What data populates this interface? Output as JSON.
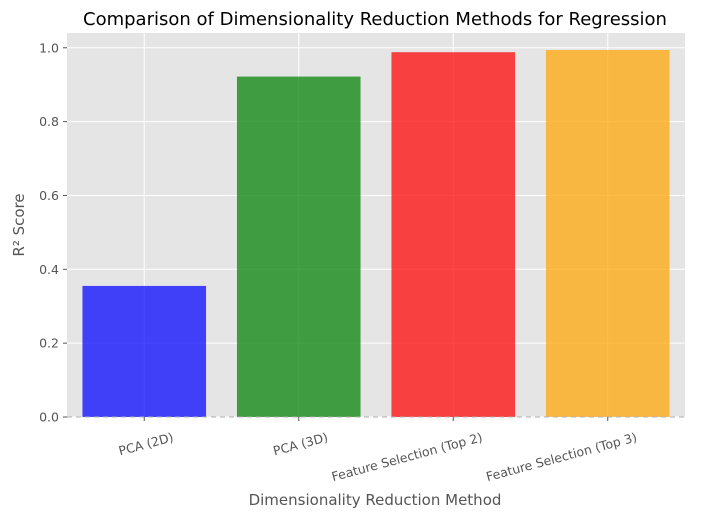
{
  "chart_data": {
    "type": "bar",
    "title": "Comparison of Dimensionality Reduction Methods for Regression",
    "xlabel": "Dimensionality Reduction Method",
    "ylabel": "R² Score",
    "categories": [
      "PCA (2D)",
      "PCA (3D)",
      "Feature Selection (Top 2)",
      "Feature Selection (Top 3)"
    ],
    "values": [
      0.355,
      0.922,
      0.988,
      0.994
    ],
    "colors": [
      "#0000ff",
      "#008000",
      "#ff0000",
      "#ffa500"
    ],
    "ylim": [
      0,
      1.04
    ],
    "yticks": [
      0.0,
      0.2,
      0.4,
      0.6,
      0.8,
      1.0
    ],
    "ytick_labels": [
      "0.0",
      "0.2",
      "0.4",
      "0.6",
      "0.8",
      "1.0"
    ],
    "xtick_rotation": "15 degrees",
    "grid": true,
    "legend": "none",
    "baseline": "dashed at 0",
    "background_color": "#e5e5e5",
    "grid_color": "#ffffff"
  }
}
